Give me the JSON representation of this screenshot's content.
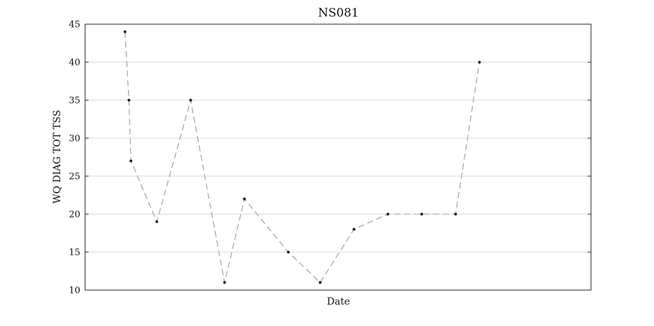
{
  "chart_data": {
    "type": "line",
    "title": "NS081",
    "xlabel": "Date",
    "ylabel": "WQ DIAG TOT TSS",
    "ylim": [
      10,
      45
    ],
    "yticks": [
      10,
      15,
      20,
      25,
      30,
      35,
      40,
      45
    ],
    "grid": true,
    "legend": "none",
    "colors": {
      "line": "#9a9a9a",
      "marker": "#222222",
      "grid": "#d9d9d9",
      "axes": "#222222"
    },
    "series": [
      {
        "x": [
          1.0,
          1.1,
          1.15,
          1.8,
          2.65,
          3.5,
          4.0,
          5.1,
          5.9,
          6.75,
          7.6,
          8.45,
          9.3,
          9.9
        ],
        "values": [
          44,
          35,
          27,
          19,
          35,
          11,
          22,
          15,
          11,
          18,
          20,
          20,
          20,
          40
        ]
      }
    ]
  }
}
